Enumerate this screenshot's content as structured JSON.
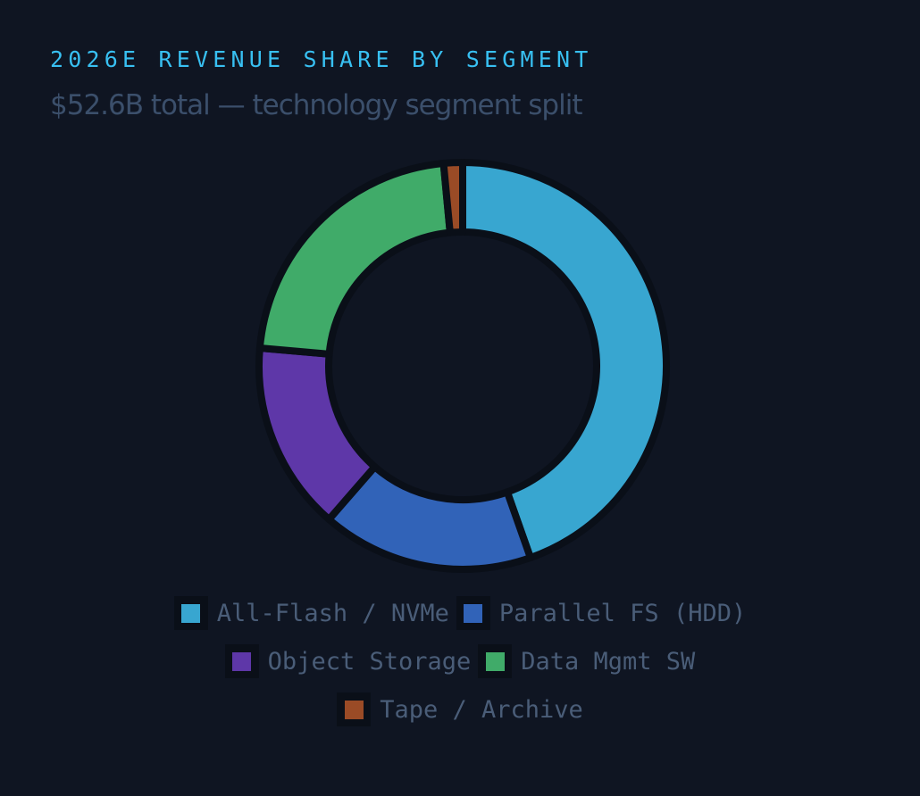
{
  "header": {
    "title": "2026E REVENUE SHARE BY SEGMENT",
    "subtitle": "$52.6B total — technology segment split"
  },
  "chart_data": {
    "type": "pie",
    "variant": "donut",
    "title": "2026E REVENUE SHARE BY SEGMENT",
    "subtitle": "$52.6B total — technology segment split",
    "total": "$52.6B",
    "categories": [
      "All-Flash / NVMe",
      "Parallel FS (HDD)",
      "Object Storage",
      "Data Mgmt SW",
      "Tape / Archive"
    ],
    "values": [
      44.6,
      16.8,
      15.0,
      22.1,
      1.5
    ],
    "unit": "% share (estimated from slice angles)",
    "colors": [
      "#38a6d0",
      "#3163b8",
      "#5e37a8",
      "#40ab69",
      "#9a4b26"
    ],
    "legend_position": "bottom",
    "start_angle": "12 o'clock, clockwise"
  },
  "legend": {
    "rows": [
      [
        {
          "label": "All-Flash / NVMe",
          "color": "#38a6d0"
        },
        {
          "label": "Parallel FS (HDD)",
          "color": "#3163b8"
        }
      ],
      [
        {
          "label": "Object Storage",
          "color": "#5e37a8"
        },
        {
          "label": "Data Mgmt SW",
          "color": "#40ab69"
        }
      ],
      [
        {
          "label": "Tape / Archive",
          "color": "#9a4b26"
        }
      ]
    ]
  },
  "colors": {
    "background": "#0f1522",
    "title": "#38c0f2",
    "subtitle": "#3b4f6b",
    "legend_text": "#4a5d78"
  }
}
